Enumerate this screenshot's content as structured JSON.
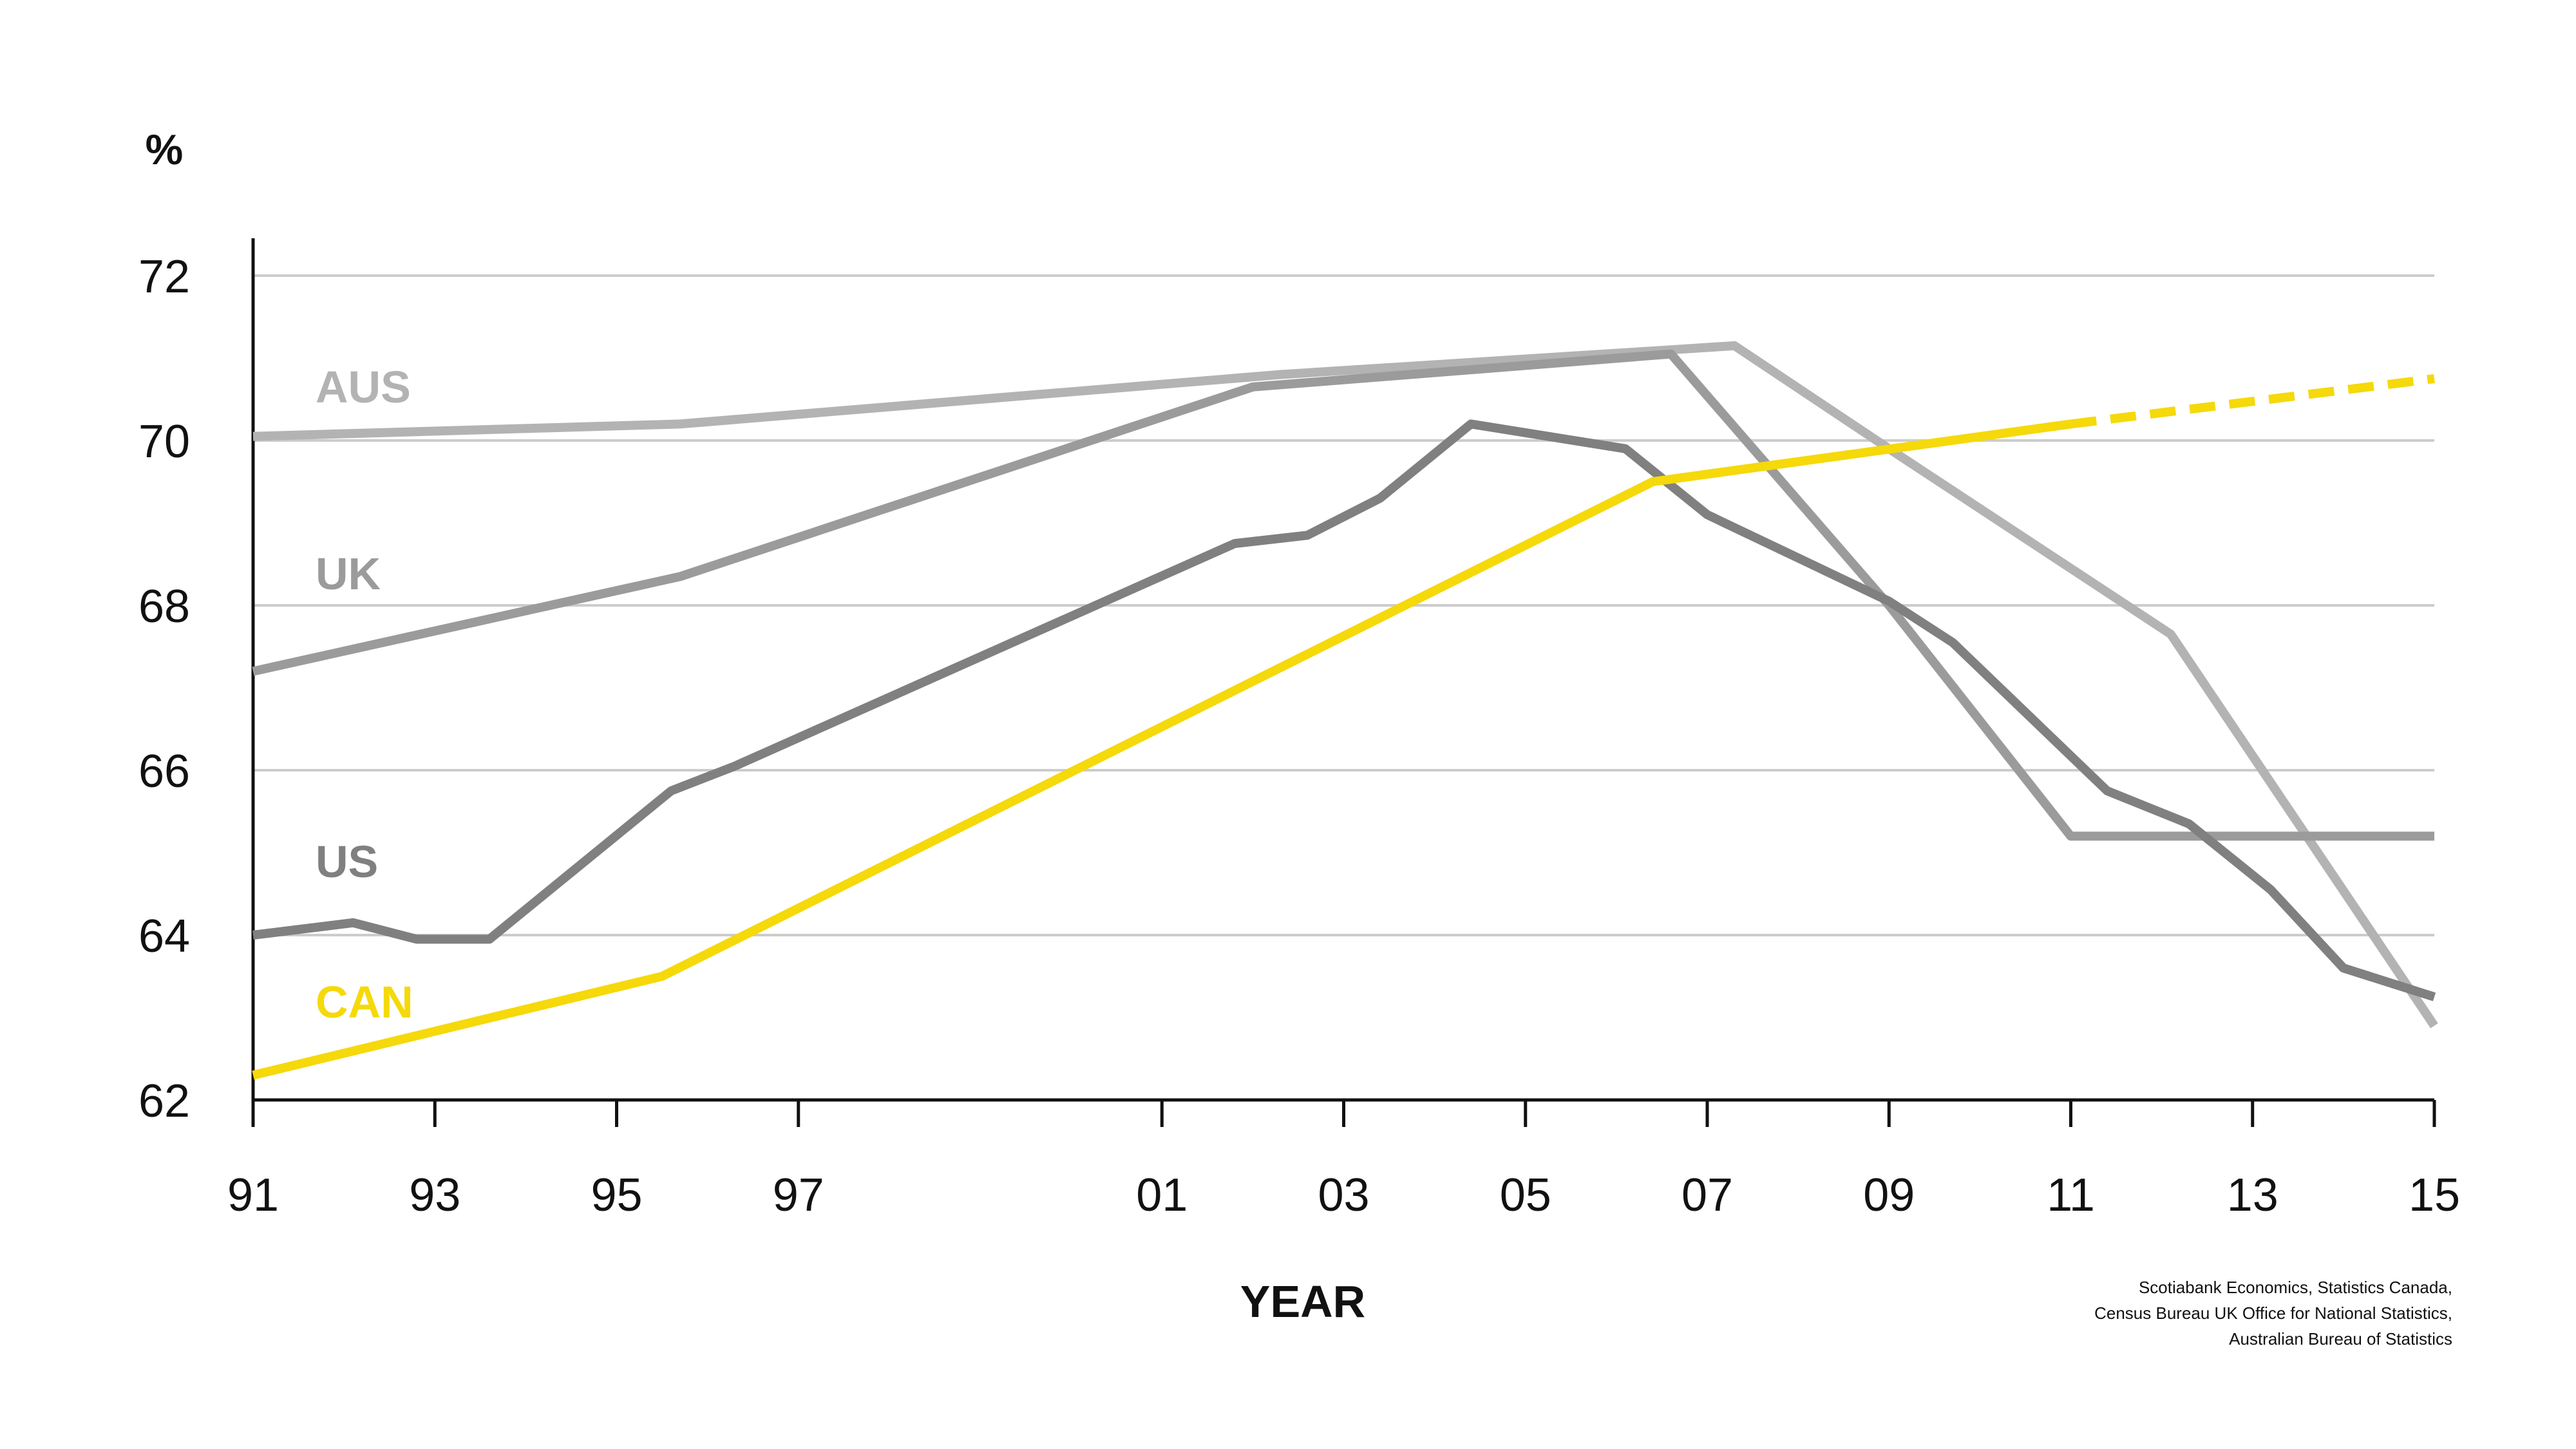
{
  "chart_data": {
    "type": "line",
    "unit_label": "%",
    "xlabel": "YEAR",
    "ylabel": "",
    "ylim": [
      62,
      72
    ],
    "yticks": [
      62,
      64,
      66,
      68,
      70,
      72
    ],
    "ytick_labels": [
      "62",
      "64",
      "66",
      "68",
      "70",
      "72"
    ],
    "xlim": [
      1991,
      2015
    ],
    "xticks": [
      1991,
      1993,
      1995,
      1997,
      2001,
      2003,
      2005,
      2007,
      2009,
      2011,
      2013,
      2015
    ],
    "xtick_labels": [
      "91",
      "93",
      "95",
      "97",
      "01",
      "03",
      "05",
      "07",
      "09",
      "11",
      "13",
      "15"
    ],
    "grid": true,
    "legend": "inline-left",
    "series": [
      {
        "name": "AUS",
        "color": "#b3b3b3",
        "x": [
          1991,
          1995.7,
          2002.3,
          2006.6,
          2007.3,
          2009,
          2012.1,
          2015
        ],
        "values": [
          70.05,
          70.2,
          70.8,
          71.1,
          71.15,
          69.9,
          67.65,
          62.9
        ]
      },
      {
        "name": "UK",
        "color": "#9b9b9b",
        "x": [
          1991,
          1995.7,
          2002,
          2006.6,
          2009,
          2011,
          2012.5,
          2015
        ],
        "values": [
          67.2,
          68.35,
          70.65,
          71.05,
          68.0,
          65.2,
          65.2,
          65.2
        ]
      },
      {
        "name": "US",
        "color": "#808080",
        "x": [
          1991,
          1992.1,
          1992.8,
          1993.6,
          1995.6,
          1996.3,
          2001.8,
          2002.6,
          2003.4,
          2004.4,
          2006.1,
          2007,
          2009,
          2009.7,
          2011.4,
          2012.3,
          2013.2,
          2014,
          2015
        ],
        "values": [
          64.0,
          64.15,
          63.95,
          63.95,
          65.75,
          66.05,
          68.75,
          68.85,
          69.3,
          70.2,
          69.9,
          69.1,
          68.05,
          67.55,
          65.75,
          65.35,
          64.55,
          63.6,
          63.25
        ]
      },
      {
        "name": "CAN",
        "color": "#f5d90a",
        "x": [
          1991,
          1995.5,
          2006.4,
          2011,
          2015
        ],
        "values": [
          62.3,
          63.5,
          69.5,
          70.2,
          70.75
        ],
        "projection_from": 2011
      }
    ],
    "annotations": {
      "source": [
        "Scotiabank Economics, Statistics Canada,",
        "Census Bureau UK Office for National Statistics,",
        "Australian Bureau of Statistics"
      ]
    }
  }
}
